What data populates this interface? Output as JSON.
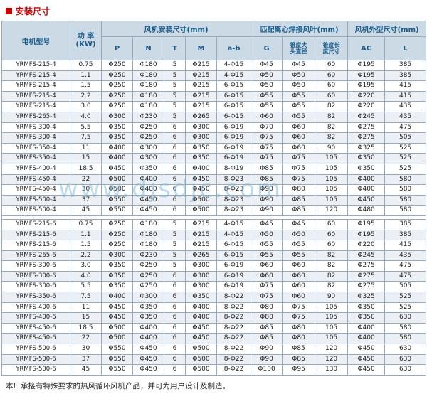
{
  "page": {
    "title": "安装尺寸",
    "footer": "本厂承接有特殊要求的热风循环风机产品，并可为用户设计及制造。",
    "watermark": "www.djsdjc.com"
  },
  "colors": {
    "accent_red": "#cc0000",
    "header_bg": "#ccdae6",
    "header_text": "#1a5e8c",
    "border": "#95aabf",
    "row_alt": "#eceff3",
    "watermark": "#7db9dc"
  },
  "table": {
    "headers": {
      "model": "电机型号",
      "power_l1": "功 率",
      "power_l2": "(KW)",
      "install_group": "风机安装尺寸(mm)",
      "blade_group": "匹配离心焊接风叶(mm)",
      "outline_group": "风机外型尺寸(mm)",
      "p": "P",
      "n": "N",
      "t": "T",
      "m": "M",
      "ab": "a-b",
      "g": "G",
      "taper_head_l1": "锥度大",
      "taper_head_l2": "头直径",
      "taper_len_l1": "锥度长",
      "taper_len_l2": "度尺寸",
      "ac": "AC",
      "l": "L"
    },
    "series4": [
      [
        "YRMFS-215-4",
        "0.75",
        "Φ250",
        "Φ180",
        "5",
        "Φ215",
        "4-Φ15",
        "Φ45",
        "Φ45",
        "60",
        "Φ195",
        "385"
      ],
      [
        "YRMFS-215-4",
        "1.1",
        "Φ250",
        "Φ180",
        "5",
        "Φ215",
        "4-Φ15",
        "Φ50",
        "Φ50",
        "60",
        "Φ195",
        "385"
      ],
      [
        "YRMFS-215-4",
        "1.5",
        "Φ250",
        "Φ180",
        "5",
        "Φ215",
        "6-Φ15",
        "Φ50",
        "Φ50",
        "60",
        "Φ195",
        "415"
      ],
      [
        "YRMFS-215-4",
        "2.2",
        "Φ250",
        "Φ180",
        "5",
        "Φ215",
        "6-Φ15",
        "Φ55",
        "Φ55",
        "60",
        "Φ220",
        "415"
      ],
      [
        "YRMFS-215-4",
        "3.0",
        "Φ250",
        "Φ180",
        "5",
        "Φ215",
        "6-Φ15",
        "Φ55",
        "Φ55",
        "82",
        "Φ220",
        "435"
      ],
      [
        "YRMFS-265-4",
        "4.0",
        "Φ300",
        "Φ230",
        "5",
        "Φ265",
        "6-Φ15",
        "Φ60",
        "Φ55",
        "82",
        "Φ245",
        "435"
      ],
      [
        "YRMFS-300-4",
        "5.5",
        "Φ350",
        "Φ250",
        "6",
        "Φ300",
        "6-Φ19",
        "Φ70",
        "Φ60",
        "82",
        "Φ275",
        "475"
      ],
      [
        "YRMFS-300-4",
        "7.5",
        "Φ350",
        "Φ250",
        "6",
        "Φ300",
        "6-Φ19",
        "Φ75",
        "Φ60",
        "82",
        "Φ275",
        "505"
      ],
      [
        "YRMFS-350-4",
        "11",
        "Φ400",
        "Φ300",
        "6",
        "Φ350",
        "6-Φ19",
        "Φ75",
        "Φ60",
        "90",
        "Φ325",
        "525"
      ],
      [
        "YRMFS-350-4",
        "15",
        "Φ400",
        "Φ300",
        "6",
        "Φ350",
        "6-Φ19",
        "Φ75",
        "Φ75",
        "105",
        "Φ350",
        "525"
      ],
      [
        "YRMFS-400-4",
        "18.5",
        "Φ450",
        "Φ350",
        "6",
        "Φ400",
        "8-Φ19",
        "Φ85",
        "Φ75",
        "105",
        "Φ350",
        "525"
      ],
      [
        "YRMFS-450-4",
        "22",
        "Φ500",
        "Φ400",
        "6",
        "Φ450",
        "8-Φ23",
        "Φ85",
        "Φ75",
        "105",
        "Φ400",
        "580"
      ],
      [
        "YRMFS-450-4",
        "30",
        "Φ500",
        "Φ400",
        "6",
        "Φ450",
        "8-Φ23",
        "Φ90",
        "Φ80",
        "105",
        "Φ400",
        "580"
      ],
      [
        "YRMFS-500-4",
        "37",
        "Φ550",
        "Φ450",
        "6",
        "Φ500",
        "8-Φ23",
        "Φ90",
        "Φ85",
        "105",
        "Φ450",
        "580"
      ],
      [
        "YRMFS-500-4",
        "45",
        "Φ550",
        "Φ450",
        "6",
        "Φ500",
        "8-Φ23",
        "Φ90",
        "Φ85",
        "120",
        "Φ480",
        "580"
      ]
    ],
    "series6": [
      [
        "YRMFS-215-6",
        "0.75",
        "Φ250",
        "Φ180",
        "5",
        "Φ215",
        "4-Φ15",
        "Φ45",
        "Φ45",
        "60",
        "Φ195",
        "385"
      ],
      [
        "YRMFS-215-6",
        "1.1",
        "Φ250",
        "Φ180",
        "5",
        "Φ215",
        "4-Φ15",
        "Φ50",
        "Φ50",
        "60",
        "Φ195",
        "385"
      ],
      [
        "YRMFS-215-6",
        "1.5",
        "Φ250",
        "Φ180",
        "5",
        "Φ215",
        "6-Φ15",
        "Φ55",
        "Φ55",
        "60",
        "Φ220",
        "415"
      ],
      [
        "YRMFS-265-6",
        "2.2",
        "Φ300",
        "Φ230",
        "5",
        "Φ265",
        "6-Φ15",
        "Φ55",
        "Φ55",
        "82",
        "Φ245",
        "435"
      ],
      [
        "YRMFS-300-6",
        "3.0",
        "Φ350",
        "Φ250",
        "5",
        "Φ300",
        "6-Φ19",
        "Φ60",
        "Φ60",
        "82",
        "Φ275",
        "475"
      ],
      [
        "YRMFS-300-6",
        "4.0",
        "Φ350",
        "Φ250",
        "6",
        "Φ300",
        "6-Φ19",
        "Φ60",
        "Φ60",
        "82",
        "Φ275",
        "475"
      ],
      [
        "YRMFS-300-6",
        "5.5",
        "Φ350",
        "Φ250",
        "6",
        "Φ300",
        "6-Φ19",
        "Φ75",
        "Φ60",
        "82",
        "Φ275",
        "505"
      ],
      [
        "YRMFS-350-6",
        "7.5",
        "Φ400",
        "Φ300",
        "6",
        "Φ350",
        "8-Φ22",
        "Φ75",
        "Φ60",
        "90",
        "Φ325",
        "525"
      ],
      [
        "YRMFS-400-6",
        "11",
        "Φ450",
        "Φ350",
        "6",
        "Φ400",
        "8-Φ22",
        "Φ80",
        "Φ75",
        "105",
        "Φ350",
        "525"
      ],
      [
        "YRMFS-400-6",
        "15",
        "Φ450",
        "Φ350",
        "6",
        "Φ400",
        "8-Φ22",
        "Φ80",
        "Φ75",
        "105",
        "Φ350",
        "630"
      ],
      [
        "YRMFS-450-6",
        "18.5",
        "Φ500",
        "Φ400",
        "6",
        "Φ450",
        "8-Φ22",
        "Φ85",
        "Φ80",
        "105",
        "Φ400",
        "580"
      ],
      [
        "YRMFS-450-6",
        "22",
        "Φ500",
        "Φ400",
        "6",
        "Φ450",
        "8-Φ22",
        "Φ85",
        "Φ80",
        "105",
        "Φ400",
        "580"
      ],
      [
        "YRMFS-500-6",
        "30",
        "Φ550",
        "Φ450",
        "6",
        "Φ500",
        "8-Φ22",
        "Φ90",
        "Φ85",
        "120",
        "Φ450",
        "630"
      ],
      [
        "YRMFS-500-6",
        "37",
        "Φ550",
        "Φ450",
        "6",
        "Φ500",
        "8-Φ22",
        "Φ90",
        "Φ85",
        "120",
        "Φ450",
        "630"
      ],
      [
        "YRMFS-500-6",
        "45",
        "Φ550",
        "Φ450",
        "6",
        "Φ500",
        "8-Φ22",
        "Φ100",
        "Φ95",
        "130",
        "Φ450",
        "630"
      ]
    ]
  }
}
